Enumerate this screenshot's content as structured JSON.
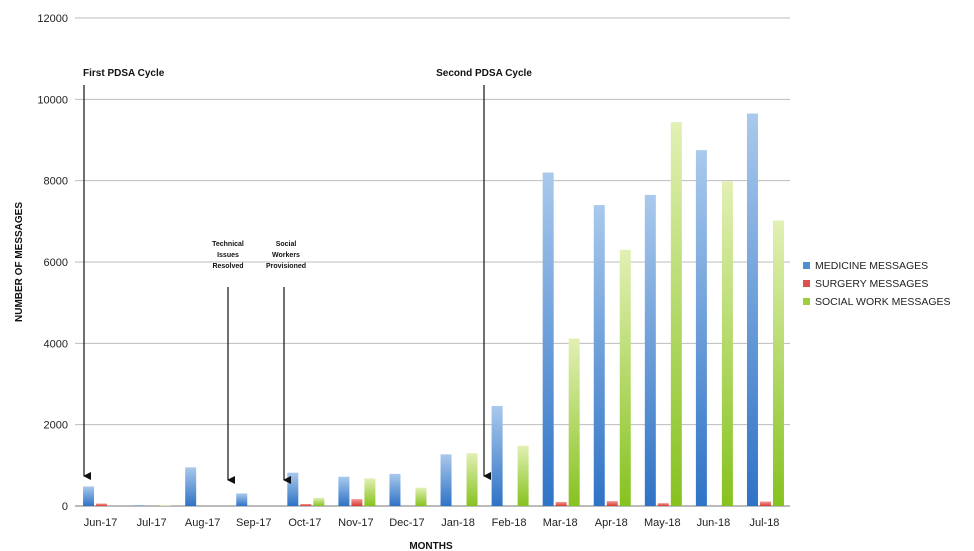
{
  "chart_data": {
    "type": "bar",
    "xlabel": "MONTHS",
    "ylabel": "NUMBER OF MESSAGES",
    "ylim": [
      0,
      12000
    ],
    "yticks": [
      0,
      2000,
      4000,
      6000,
      8000,
      10000,
      12000
    ],
    "grid": true,
    "legend_position": "right",
    "categories": [
      "Jun-17",
      "Jul-17",
      "Aug-17",
      "Sep-17",
      "Oct-17",
      "Nov-17",
      "Dec-17",
      "Jan-18",
      "Feb-18",
      "Mar-18",
      "Apr-18",
      "May-18",
      "Jun-18",
      "Jul-18"
    ],
    "series": [
      {
        "name": "MEDICINE MESSAGES",
        "color": "#4f8fd4",
        "values": [
          480,
          20,
          950,
          310,
          820,
          720,
          790,
          1270,
          2460,
          8200,
          7400,
          7650,
          8750,
          9650
        ]
      },
      {
        "name": "SURGERY MESSAGES",
        "color": "#e0504a",
        "values": [
          60,
          0,
          0,
          0,
          50,
          170,
          0,
          0,
          0,
          100,
          120,
          70,
          0,
          110
        ]
      },
      {
        "name": "SOCIAL WORK MESSAGES",
        "color": "#9fce3c",
        "values": [
          0,
          10,
          0,
          0,
          200,
          680,
          450,
          1300,
          1480,
          4120,
          6300,
          9440,
          7980,
          7020
        ]
      }
    ],
    "annotations": [
      {
        "text": "First PDSA Cycle",
        "category": "Jun-17",
        "arrow_to": 0
      },
      {
        "text": "Technical Issues Resolved",
        "category": "Sep-17",
        "arrow_to": 0
      },
      {
        "text": "Social Workers Provisioned",
        "category": "Oct-17",
        "arrow_to": 0
      },
      {
        "text": "Second PDSA Cycle",
        "category": "Feb-18",
        "arrow_to": 0
      }
    ]
  }
}
